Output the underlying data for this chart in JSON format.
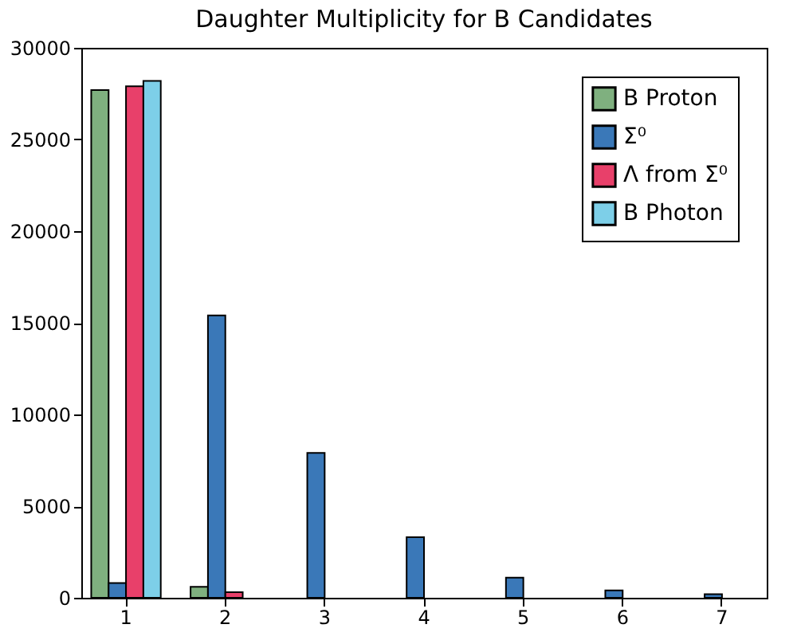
{
  "chart_data": {
    "type": "bar",
    "title": "Daughter Multiplicity for B Candidates",
    "categories": [
      "1",
      "2",
      "3",
      "4",
      "5",
      "6",
      "7"
    ],
    "series": [
      {
        "name": "B Proton",
        "color": "#7fb07f",
        "values": [
          27700,
          600,
          null,
          null,
          null,
          null,
          null
        ]
      },
      {
        "name": "Σ⁰",
        "color": "#3a78b8",
        "values": [
          800,
          15400,
          7900,
          3300,
          1100,
          400,
          200
        ]
      },
      {
        "name": "Λ from Σ⁰",
        "color": "#e8406a",
        "values": [
          27900,
          300,
          null,
          null,
          null,
          null,
          null
        ]
      },
      {
        "name": "B Photon",
        "color": "#7dcfe8",
        "values": [
          28200,
          null,
          null,
          null,
          null,
          null,
          null
        ]
      }
    ],
    "ylim": [
      0,
      30000
    ],
    "yticks": [
      0,
      5000,
      10000,
      15000,
      20000,
      25000,
      30000
    ],
    "grid": false,
    "legend": "top right"
  }
}
